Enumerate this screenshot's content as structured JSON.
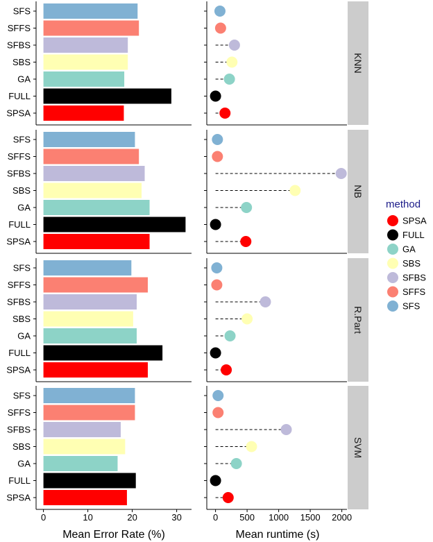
{
  "chart_data": {
    "type": "bar+lollipop (faceted)",
    "methods": [
      "SFS",
      "SFFS",
      "SFBS",
      "SBS",
      "GA",
      "FULL",
      "SPSA"
    ],
    "colors": {
      "SFS": "#80b1d3",
      "SFFS": "#fb8072",
      "SFBS": "#bebada",
      "SBS": "#ffffb3",
      "GA": "#8dd3c7",
      "FULL": "#000000",
      "SPSA": "#ff0000"
    },
    "facets": [
      {
        "label": "KNN",
        "error": {
          "SFS": 21.2,
          "SFFS": 21.5,
          "SFBS": 19.0,
          "SBS": 19.0,
          "GA": 18.2,
          "FULL": 28.8,
          "SPSA": 18.1
        },
        "runtime": {
          "SFS": 70,
          "SFFS": 80,
          "SFBS": 300,
          "SBS": 260,
          "GA": 220,
          "FULL": 0,
          "SPSA": 150
        }
      },
      {
        "label": "NB",
        "error": {
          "SFS": 20.6,
          "SFFS": 21.5,
          "SFBS": 22.8,
          "SBS": 22.1,
          "GA": 23.9,
          "FULL": 32.0,
          "SPSA": 23.9
        },
        "runtime": {
          "SFS": 30,
          "SFFS": 30,
          "SFBS": 1990,
          "SBS": 1260,
          "GA": 490,
          "FULL": 0,
          "SPSA": 480
        }
      },
      {
        "label": "R.Part",
        "error": {
          "SFS": 19.8,
          "SFFS": 23.5,
          "SFBS": 21.0,
          "SBS": 20.2,
          "GA": 21.0,
          "FULL": 26.8,
          "SPSA": 23.5
        },
        "runtime": {
          "SFS": 20,
          "SFFS": 20,
          "SFBS": 790,
          "SBS": 500,
          "GA": 230,
          "FULL": 0,
          "SPSA": 170
        }
      },
      {
        "label": "SVM",
        "error": {
          "SFS": 20.6,
          "SFFS": 20.6,
          "SFBS": 17.4,
          "SBS": 18.4,
          "GA": 16.7,
          "FULL": 20.8,
          "SPSA": 18.8
        },
        "runtime": {
          "SFS": 40,
          "SFFS": 40,
          "SFBS": 1120,
          "SBS": 570,
          "GA": 330,
          "FULL": 0,
          "SPSA": 200
        }
      }
    ],
    "error_axis": {
      "title": "Mean Error Rate (%)",
      "range": [
        0,
        33
      ],
      "ticks": [
        0,
        10,
        20,
        30
      ]
    },
    "runtime_axis": {
      "title": "Mean runtime (s)",
      "range": [
        -100,
        2070
      ],
      "ticks": [
        0,
        500,
        1000,
        1500,
        2000
      ]
    },
    "legend": {
      "title": "method",
      "entries": [
        "SPSA",
        "FULL",
        "GA",
        "SBS",
        "SFBS",
        "SFFS",
        "SFS"
      ],
      "position": "right"
    }
  }
}
